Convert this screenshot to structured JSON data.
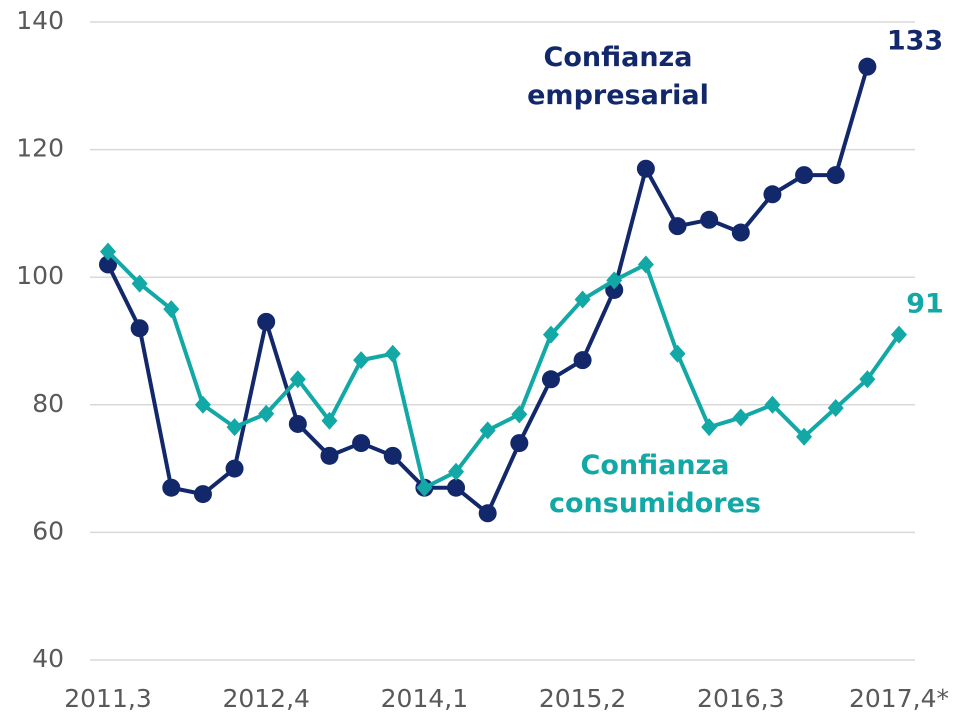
{
  "chart_data": {
    "type": "line",
    "categories": [
      "2011,3",
      null,
      null,
      null,
      null,
      "2012,4",
      null,
      null,
      null,
      null,
      "2014,1",
      null,
      null,
      null,
      null,
      "2015,2",
      null,
      null,
      null,
      null,
      "2016,3",
      null,
      null,
      null,
      null,
      "2017,4*"
    ],
    "series": [
      {
        "name": "Confianza empresarial",
        "color": "#13286b",
        "marker": "circle",
        "values": [
          102,
          92,
          67,
          66,
          70,
          93,
          77,
          72,
          74,
          72,
          67,
          67,
          63,
          74,
          84,
          87,
          98,
          117,
          108,
          109,
          107,
          113,
          116,
          116,
          133,
          null
        ]
      },
      {
        "name": "Confianza consumidores",
        "color": "#12a8a6",
        "marker": "diamond",
        "values": [
          104,
          99,
          95,
          80,
          76.5,
          78.6,
          84,
          77.5,
          87,
          88,
          67,
          69.5,
          76,
          78.5,
          91,
          96.5,
          99.5,
          102,
          88,
          76.5,
          78,
          80,
          75,
          79.5,
          84,
          91
        ]
      }
    ],
    "ylim": [
      40,
      140
    ],
    "yticks": [
      40,
      60,
      80,
      100,
      120,
      140
    ],
    "grid": true
  }
}
